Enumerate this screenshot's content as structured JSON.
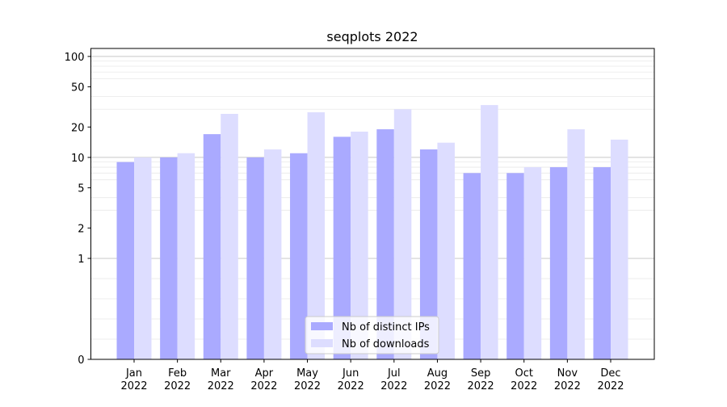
{
  "chart_data": {
    "type": "bar",
    "title": "seqplots 2022",
    "xlabel": "",
    "ylabel": "",
    "yscale": "symlog",
    "ylim": [
      0,
      120
    ],
    "yticks": [
      0,
      1,
      2,
      5,
      10,
      20,
      50,
      100
    ],
    "grid": true,
    "legend_position": "bottom-center",
    "categories": [
      [
        "Jan",
        "2022"
      ],
      [
        "Feb",
        "2022"
      ],
      [
        "Mar",
        "2022"
      ],
      [
        "Apr",
        "2022"
      ],
      [
        "May",
        "2022"
      ],
      [
        "Jun",
        "2022"
      ],
      [
        "Jul",
        "2022"
      ],
      [
        "Aug",
        "2022"
      ],
      [
        "Sep",
        "2022"
      ],
      [
        "Oct",
        "2022"
      ],
      [
        "Nov",
        "2022"
      ],
      [
        "Dec",
        "2022"
      ]
    ],
    "series": [
      {
        "name": "Nb of distinct IPs",
        "color": "#aaaaff",
        "values": [
          9,
          10,
          17,
          10,
          11,
          16,
          19,
          12,
          7,
          7,
          8,
          8
        ]
      },
      {
        "name": "Nb of downloads",
        "color": "#ddddff",
        "values": [
          10,
          11,
          27,
          12,
          28,
          18,
          30,
          14,
          33,
          8,
          19,
          15
        ]
      }
    ]
  }
}
